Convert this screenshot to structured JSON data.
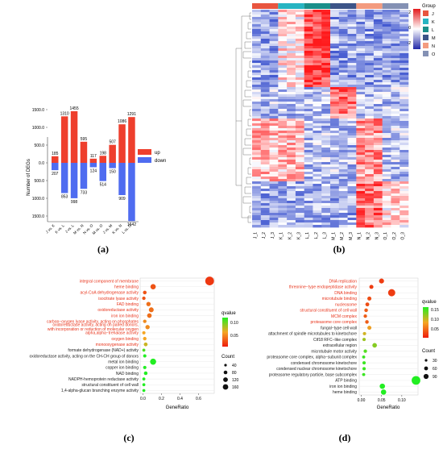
{
  "colors": {
    "up": "#ee3f2d",
    "down": "#4f6cf0",
    "term_red": "#e8331a",
    "term_black": "#222222",
    "heat_low": "#2229a8",
    "heat_mid": "#ffffff",
    "heat_high": "#e31a1c",
    "group_J": "#e8553f",
    "group_K": "#27b4c2",
    "group_L": "#1a8f8a",
    "group_M": "#3c5488",
    "group_N": "#f39b7f",
    "group_O": "#8491b4"
  },
  "panels": {
    "a": "(a)",
    "b": "(b)",
    "c": "(c)",
    "d": "(d)"
  },
  "chart_data": [
    {
      "type": "bar",
      "panel": "a",
      "ylabel": "Number of DEGs",
      "ylim": [
        -1750,
        1700
      ],
      "yticks": [
        "1500.0",
        "1000.0",
        "500.0",
        "0.0",
        "500.0",
        "1000.0",
        "1500.0"
      ],
      "categories": [
        "J vs. K",
        "K vs. L",
        "J vs. L",
        "M vs. N",
        "N vs. O",
        "M vs. O",
        "J vs. M",
        "K vs. N",
        "L vs. O"
      ],
      "series": [
        {
          "name": "up",
          "values": [
            185,
            1310,
            1455,
            595,
            117,
            198,
            507,
            1086,
            1291
          ]
        },
        {
          "name": "down",
          "values": [
            207,
            853,
            998,
            733,
            124,
            514,
            150,
            909,
            1642
          ]
        }
      ],
      "legend": "right"
    },
    {
      "type": "heatmap",
      "panel": "b",
      "columns": [
        "J_1",
        "J_2",
        "J_3",
        "K_1",
        "K_2",
        "K_3",
        "L_1",
        "L_2",
        "L_3",
        "M_1",
        "M_2",
        "M_3",
        "N_1",
        "N_2",
        "N_3",
        "O_1",
        "O_2",
        "O_3"
      ],
      "groups": [
        "J",
        "K",
        "L",
        "M",
        "N",
        "O"
      ],
      "legend_title": "Group",
      "scale_ticks": [
        "2",
        "0",
        "-2"
      ],
      "scale_range": [
        -2,
        2
      ]
    },
    {
      "type": "scatter",
      "panel": "c",
      "xlabel": "GeneRatio",
      "xticks": [
        "0.0",
        "0.2",
        "0.4",
        "0.6"
      ],
      "xlim": [
        -0.03,
        0.77
      ],
      "terms": [
        {
          "label": "integral component of membrane",
          "x": 0.72,
          "count": 160,
          "qvalue": 0.01,
          "highlight": true
        },
        {
          "label": "heme binding",
          "x": 0.11,
          "count": 40,
          "qvalue": 0.02,
          "highlight": true
        },
        {
          "label": "acyl-CoA dehydrogenase activity",
          "x": 0.02,
          "count": 10,
          "qvalue": 0.02,
          "highlight": true
        },
        {
          "label": "isocitrate lyase activity",
          "x": 0.01,
          "count": 8,
          "qvalue": 0.02,
          "highlight": true
        },
        {
          "label": "FAD binding",
          "x": 0.06,
          "count": 20,
          "qvalue": 0.03,
          "highlight": true
        },
        {
          "label": "oxidoreductase activity",
          "x": 0.09,
          "count": 30,
          "qvalue": 0.03,
          "highlight": true
        },
        {
          "label": "iron ion binding",
          "x": 0.07,
          "count": 25,
          "qvalue": 0.03,
          "highlight": true
        },
        {
          "label": "carbon−oxygen lyase activity, acting on phosphates",
          "x": 0.02,
          "count": 8,
          "qvalue": 0.04,
          "highlight": true
        },
        {
          "label": "oxidoreductase activity, acting on paired donors,\nwith incorporation or reduction of molecular oxygen",
          "x": 0.05,
          "count": 20,
          "qvalue": 0.04,
          "highlight": true
        },
        {
          "label": "alpha,alpha−trehalase activity",
          "x": 0.01,
          "count": 6,
          "qvalue": 0.05,
          "highlight": true
        },
        {
          "label": "oxygen binding",
          "x": 0.02,
          "count": 8,
          "qvalue": 0.05,
          "highlight": true
        },
        {
          "label": "monooxygenase activity",
          "x": 0.03,
          "count": 12,
          "qvalue": 0.06,
          "highlight": true
        },
        {
          "label": "formate dehydrogenase (NAD+) activity",
          "x": 0.01,
          "count": 4,
          "qvalue": 0.09,
          "highlight": false
        },
        {
          "label": "oxidoreductase activity, acting on the CH-CH group of donors",
          "x": 0.02,
          "count": 6,
          "qvalue": 0.1,
          "highlight": false
        },
        {
          "label": "metal ion binding",
          "x": 0.11,
          "count": 60,
          "qvalue": 0.1,
          "highlight": false
        },
        {
          "label": "copper ion binding",
          "x": 0.02,
          "count": 6,
          "qvalue": 0.1,
          "highlight": false
        },
        {
          "label": "NAD binding",
          "x": 0.03,
          "count": 10,
          "qvalue": 0.1,
          "highlight": false
        },
        {
          "label": "NADPH-hemoprotein reductase activity",
          "x": 0.01,
          "count": 4,
          "qvalue": 0.1,
          "highlight": false
        },
        {
          "label": "structural constituent of cell wall",
          "x": 0.01,
          "count": 4,
          "qvalue": 0.1,
          "highlight": false
        },
        {
          "label": "1,4-alpha-glucan branching enzyme activity",
          "x": 0.01,
          "count": 4,
          "qvalue": 0.1,
          "highlight": false
        }
      ],
      "qvalue_ticks": [
        "0.10",
        "0.05"
      ],
      "count_ticks": [
        "40",
        "80",
        "120",
        "160"
      ],
      "legend_qvalue": "qvalue",
      "legend_count": "Count"
    },
    {
      "type": "scatter",
      "panel": "d",
      "xlabel": "GeneRatio",
      "xticks": [
        "0.00",
        "0.05",
        "0.10"
      ],
      "xlim": [
        -0.005,
        0.14
      ],
      "terms": [
        {
          "label": "DNA replication",
          "x": 0.05,
          "count": 20,
          "qvalue": 0.02,
          "highlight": true
        },
        {
          "label": "threonine−type endopeptidase activity",
          "x": 0.025,
          "count": 10,
          "qvalue": 0.02,
          "highlight": true
        },
        {
          "label": "DNA binding",
          "x": 0.075,
          "count": 60,
          "qvalue": 0.02,
          "highlight": true
        },
        {
          "label": "microtubule binding",
          "x": 0.02,
          "count": 10,
          "qvalue": 0.03,
          "highlight": true
        },
        {
          "label": "nucleosome",
          "x": 0.015,
          "count": 8,
          "qvalue": 0.03,
          "highlight": true
        },
        {
          "label": "structural constituent of cell wall",
          "x": 0.012,
          "count": 6,
          "qvalue": 0.04,
          "highlight": true
        },
        {
          "label": "MCM complex",
          "x": 0.01,
          "count": 5,
          "qvalue": 0.04,
          "highlight": true
        },
        {
          "label": "proteasome core complex",
          "x": 0.014,
          "count": 6,
          "qvalue": 0.04,
          "highlight": true
        },
        {
          "label": "fungal−type cell wall",
          "x": 0.02,
          "count": 10,
          "qvalue": 0.08,
          "highlight": false
        },
        {
          "label": "attachment of spindle microtubules to kinetochore",
          "x": 0.008,
          "count": 4,
          "qvalue": 0.1,
          "highlight": false
        },
        {
          "label": "Ctf18 RFC−like complex",
          "x": 0.007,
          "count": 4,
          "qvalue": 0.12,
          "highlight": false
        },
        {
          "label": "extracellular region",
          "x": 0.033,
          "count": 15,
          "qvalue": 0.13,
          "highlight": false
        },
        {
          "label": "microtubule motor activity",
          "x": 0.01,
          "count": 5,
          "qvalue": 0.15,
          "highlight": false
        },
        {
          "label": "proteasome core complex, alpha−subunit complex",
          "x": 0.006,
          "count": 3,
          "qvalue": 0.16,
          "highlight": false
        },
        {
          "label": "condensed chromosome kinetochore",
          "x": 0.007,
          "count": 4,
          "qvalue": 0.16,
          "highlight": false
        },
        {
          "label": "condensed nuclear chromosome kinetochore",
          "x": 0.007,
          "count": 4,
          "qvalue": 0.16,
          "highlight": false
        },
        {
          "label": "proteasome regulatory particle, base subcomplex",
          "x": 0.006,
          "count": 3,
          "qvalue": 0.16,
          "highlight": false
        },
        {
          "label": "ATP binding",
          "x": 0.135,
          "count": 100,
          "qvalue": 0.17,
          "highlight": false
        },
        {
          "label": "iron ion binding",
          "x": 0.052,
          "count": 25,
          "qvalue": 0.17,
          "highlight": false
        },
        {
          "label": "heme binding",
          "x": 0.055,
          "count": 25,
          "qvalue": 0.17,
          "highlight": false
        }
      ],
      "qvalue_ticks": [
        "0.15",
        "0.10",
        "0.05"
      ],
      "count_ticks": [
        "30",
        "60",
        "90"
      ],
      "legend_qvalue": "qvalue",
      "legend_count": "Count"
    }
  ]
}
